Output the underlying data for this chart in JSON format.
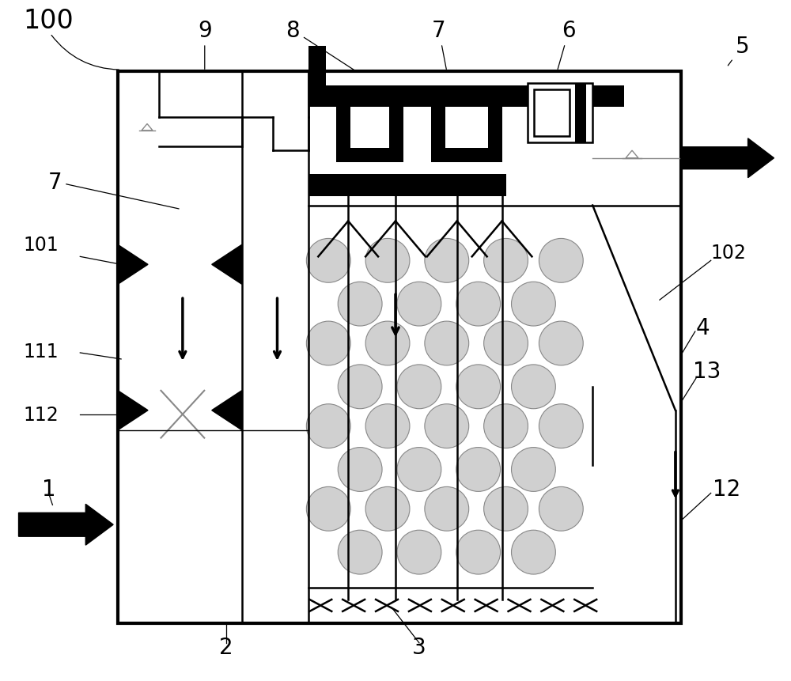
{
  "bg_color": "#ffffff",
  "line_color": "#000000",
  "gray_color": "#888888",
  "fig_width": 10.0,
  "fig_height": 8.62,
  "dpi": 100,
  "lw_thin": 1.0,
  "lw_med": 1.8,
  "lw_thick": 3.0
}
